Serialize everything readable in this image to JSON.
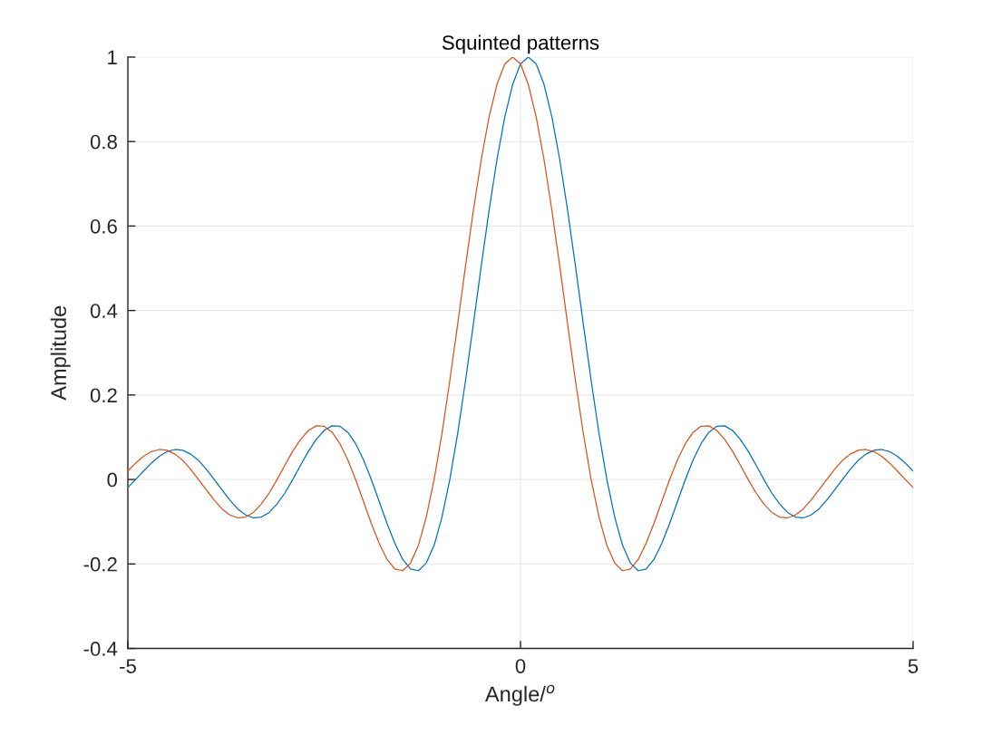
{
  "chart_data": {
    "type": "line",
    "title": "Squinted patterns",
    "xlabel": "Angle/$^{o}$",
    "ylabel": "Amplitude",
    "x": [
      -5,
      -4.9,
      -4.8,
      -4.7,
      -4.6,
      -4.5,
      -4.4,
      -4.3,
      -4.2,
      -4.1,
      -4,
      -3.9,
      -3.8,
      -3.7,
      -3.6,
      -3.5,
      -3.4,
      -3.3,
      -3.2,
      -3.1,
      -3,
      -2.9,
      -2.8,
      -2.7,
      -2.6,
      -2.5,
      -2.4,
      -2.3,
      -2.2,
      -2.1,
      -2,
      -1.9,
      -1.8,
      -1.7,
      -1.6,
      -1.5,
      -1.4,
      -1.3,
      -1.2,
      -1.1,
      -1,
      -0.9,
      -0.8,
      -0.7,
      -0.6,
      -0.5,
      -0.4,
      -0.3,
      -0.2,
      -0.1,
      0,
      0.1,
      0.2,
      0.3,
      0.4,
      0.5,
      0.6,
      0.7,
      0.8,
      0.9,
      1,
      1.1,
      1.2,
      1.3,
      1.4,
      1.5,
      1.6,
      1.7,
      1.8,
      1.9,
      2,
      2.1,
      2.2,
      2.3,
      2.4,
      2.5,
      2.6,
      2.7,
      2.8,
      2.9,
      3,
      3.1,
      3.2,
      3.3,
      3.4,
      3.5,
      3.6,
      3.7,
      3.8,
      3.9,
      4,
      4.1,
      4.2,
      4.3,
      4.4,
      4.5,
      4.6,
      4.7,
      4.8,
      4.9,
      5
    ],
    "series": [
      {
        "color": "#0072bd",
        "values": [
          -0.019,
          0,
          0.02,
          0.039,
          0.055,
          0.066,
          0.071,
          0.069,
          0.06,
          0.045,
          0.024,
          0,
          -0.025,
          -0.049,
          -0.07,
          -0.084,
          -0.091,
          -0.089,
          -0.078,
          -0.058,
          -0.032,
          0,
          0.034,
          0.067,
          0.095,
          0.116,
          0.127,
          0.126,
          0.112,
          0.085,
          0.047,
          0,
          -0.052,
          -0.104,
          -0.151,
          -0.189,
          -0.212,
          -0.216,
          -0.198,
          -0.156,
          -0.089,
          0,
          0.109,
          0.234,
          0.368,
          0.505,
          0.637,
          0.757,
          0.858,
          0.935,
          0.984,
          1,
          0.984,
          0.935,
          0.858,
          0.757,
          0.637,
          0.505,
          0.368,
          0.234,
          0.109,
          0,
          -0.089,
          -0.156,
          -0.198,
          -0.216,
          -0.212,
          -0.189,
          -0.151,
          -0.104,
          -0.052,
          0,
          0.047,
          0.085,
          0.112,
          0.126,
          0.127,
          0.116,
          0.095,
          0.067,
          0.034,
          0,
          -0.032,
          -0.058,
          -0.078,
          -0.089,
          -0.091,
          -0.084,
          -0.07,
          -0.049,
          -0.025,
          0,
          0.024,
          0.045,
          0.06,
          0.069,
          0.071,
          0.066,
          0.055,
          0.039,
          0.02
        ]
      },
      {
        "color": "#d95319",
        "values": [
          0.02,
          0.039,
          0.055,
          0.066,
          0.071,
          0.069,
          0.06,
          0.045,
          0.024,
          0,
          -0.025,
          -0.049,
          -0.07,
          -0.084,
          -0.091,
          -0.089,
          -0.078,
          -0.058,
          -0.032,
          0,
          0.034,
          0.067,
          0.095,
          0.116,
          0.127,
          0.126,
          0.112,
          0.085,
          0.047,
          0,
          -0.052,
          -0.104,
          -0.151,
          -0.189,
          -0.212,
          -0.216,
          -0.198,
          -0.156,
          -0.089,
          0,
          0.109,
          0.234,
          0.368,
          0.505,
          0.637,
          0.757,
          0.858,
          0.935,
          0.984,
          1,
          0.984,
          0.935,
          0.858,
          0.757,
          0.637,
          0.505,
          0.368,
          0.234,
          0.109,
          0,
          -0.089,
          -0.156,
          -0.198,
          -0.216,
          -0.212,
          -0.189,
          -0.151,
          -0.104,
          -0.052,
          0,
          0.047,
          0.085,
          0.112,
          0.126,
          0.127,
          0.116,
          0.095,
          0.067,
          0.034,
          0,
          -0.032,
          -0.058,
          -0.078,
          -0.089,
          -0.091,
          -0.084,
          -0.07,
          -0.049,
          -0.025,
          0,
          0.024,
          0.045,
          0.06,
          0.069,
          0.071,
          0.066,
          0.055,
          0.039,
          0.02,
          0,
          -0.019
        ]
      }
    ],
    "xlim": [
      -5,
      5
    ],
    "ylim": [
      -0.4,
      1
    ],
    "xticks": [
      -5,
      0,
      5
    ],
    "yticks": [
      -0.4,
      -0.2,
      0,
      0.2,
      0.4,
      0.6,
      0.8,
      1
    ],
    "grid": true
  }
}
